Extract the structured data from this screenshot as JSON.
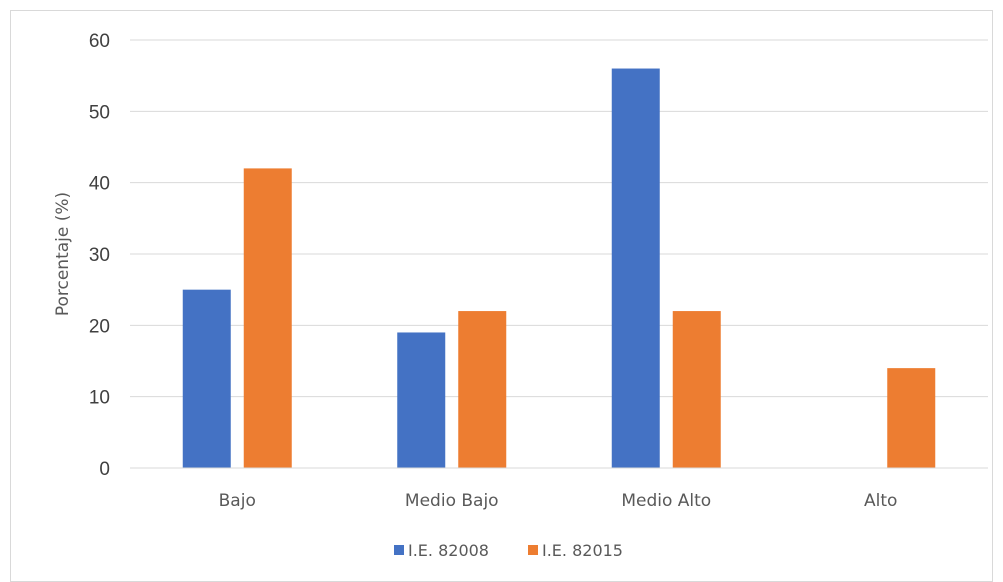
{
  "chart_data": {
    "type": "bar",
    "title": "",
    "xlabel": "",
    "ylabel": "Porcentaje (%)",
    "ylim": [
      0,
      60
    ],
    "yticks": [
      0,
      10,
      20,
      30,
      40,
      50,
      60
    ],
    "grid": true,
    "legend_position": "bottom",
    "categories": [
      "Bajo",
      "Medio Bajo",
      "Medio Alto",
      "Alto"
    ],
    "series": [
      {
        "name": "I.E. 82008",
        "color": "#4472c4",
        "values": [
          25,
          19,
          56,
          0
        ]
      },
      {
        "name": "I.E. 82015",
        "color": "#ed7d31",
        "values": [
          42,
          22,
          22,
          14
        ]
      }
    ]
  }
}
